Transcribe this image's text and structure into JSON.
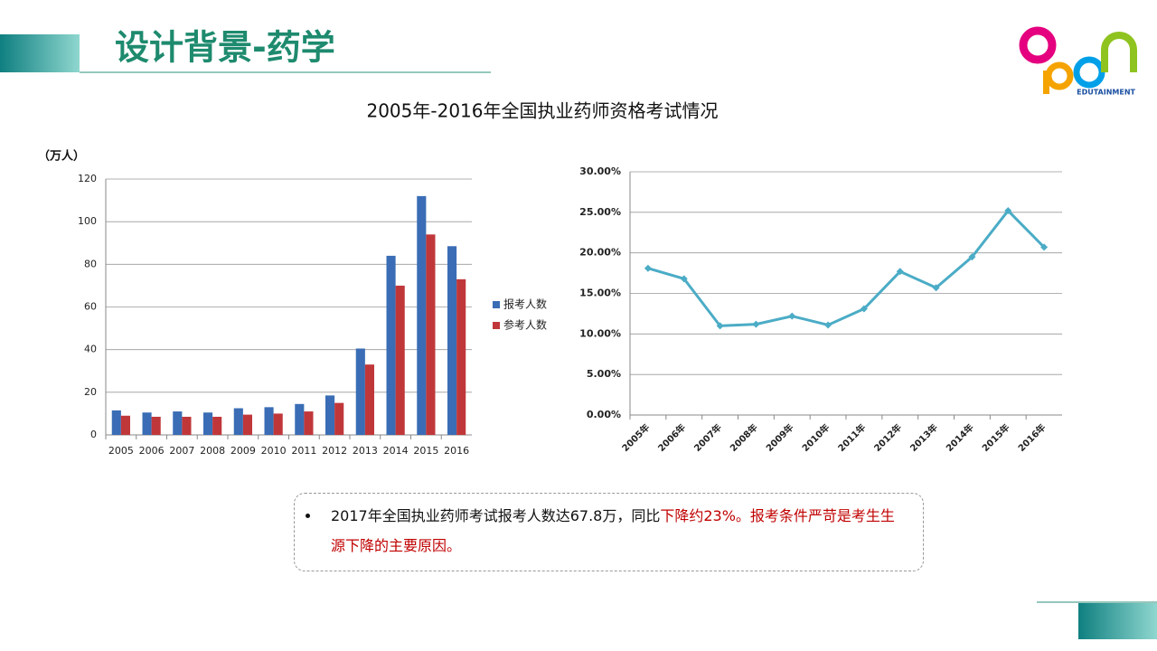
{
  "header": {
    "title": "设计背景-药学"
  },
  "logo": {
    "text": "EDUTAINMENT"
  },
  "page_title": "2005年-2016年全国执业药师资格考试情况",
  "chart_data": [
    {
      "type": "bar",
      "y_label": "（万人）",
      "categories": [
        "2005",
        "2006",
        "2007",
        "2008",
        "2009",
        "2010",
        "2011",
        "2012",
        "2013",
        "2014",
        "2015",
        "2016"
      ],
      "series": [
        {
          "name": "报考人数",
          "color": "#3a6db5",
          "values": [
            11.5,
            10.5,
            11,
            10.5,
            12.5,
            13,
            14.5,
            18.5,
            40.5,
            84,
            112,
            88.5
          ]
        },
        {
          "name": "参考人数",
          "color": "#c0373a",
          "values": [
            9,
            8.5,
            8.5,
            8.5,
            9.5,
            10,
            11,
            15,
            33,
            70,
            94,
            73
          ]
        }
      ],
      "ylim": [
        0,
        120
      ],
      "yticks": [
        0,
        20,
        40,
        60,
        80,
        100,
        120
      ],
      "grid": true,
      "legend": "right"
    },
    {
      "type": "line",
      "categories": [
        "2005年",
        "2006年",
        "2007年",
        "2008年",
        "2009年",
        "2010年",
        "2011年",
        "2012年",
        "2013年",
        "2014年",
        "2015年",
        "2016年"
      ],
      "series": [
        {
          "color": "#4bacc6",
          "values": [
            18.1,
            16.8,
            11.0,
            11.2,
            12.2,
            11.1,
            13.1,
            17.7,
            15.7,
            19.5,
            25.2,
            20.7
          ]
        }
      ],
      "ylim": [
        0,
        30
      ],
      "yticks": [
        {
          "value": 0,
          "label": "0.00%"
        },
        {
          "value": 5,
          "label": "5.00%"
        },
        {
          "value": 10,
          "label": "10.00%"
        },
        {
          "value": 15,
          "label": "15.00%"
        },
        {
          "value": 20,
          "label": "20.00%"
        },
        {
          "value": 25,
          "label": "25.00%"
        },
        {
          "value": 30,
          "label": "30.00%"
        }
      ],
      "grid": true
    }
  ],
  "note": {
    "plain": "2017年全国执业药师考试报考人数达67.8万，同比",
    "highlight": "下降约23%。报考条件严苛是考生生源下降的主要原因。"
  }
}
